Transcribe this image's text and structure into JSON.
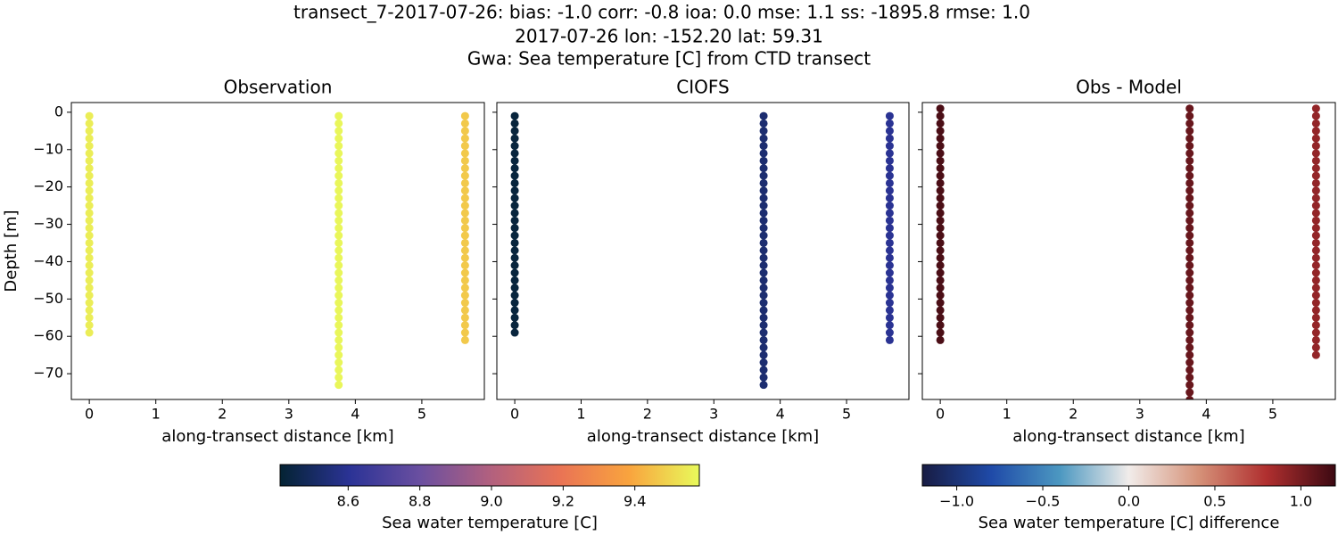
{
  "title": [
    "transect_7-2017-07-26: bias: -1.0  corr: -0.8  ioa: 0.0  mse: 1.1  ss: -1895.8  rmse: 1.0",
    "2017-07-26 lon: -152.20 lat: 59.31",
    "Gwa: Sea temperature [C] from CTD transect"
  ],
  "chart_data": [
    {
      "type": "scatter",
      "title": "Observation",
      "xlabel": "along-transect distance [km]",
      "ylabel": "Depth [m]",
      "colorbar": 0,
      "ytick_labels": true,
      "xlim": [
        -0.27,
        5.94
      ],
      "ylim": [
        -76.9,
        2.6
      ],
      "xticks": [
        0,
        1,
        2,
        3,
        4,
        5
      ],
      "yticks": [
        0,
        {
          "value": -10,
          "label": "−10"
        },
        {
          "value": -20,
          "label": "−20"
        },
        {
          "value": -30,
          "label": "−30"
        },
        {
          "value": -40,
          "label": "−40"
        },
        {
          "value": -50,
          "label": "−50"
        },
        {
          "value": -60,
          "label": "−60"
        },
        {
          "value": -70,
          "label": "−70"
        }
      ],
      "series": [
        {
          "x": 0,
          "value": 9.55,
          "depths": [
            -1,
            -3,
            -5,
            -7,
            -9,
            -11,
            -13,
            -15,
            -17,
            -19,
            -21,
            -23,
            -25,
            -27,
            -29,
            -31,
            -33,
            -35,
            -37,
            -39,
            -41,
            -43,
            -45,
            -47,
            -49,
            -51,
            -53,
            -55,
            -57,
            -59
          ]
        },
        {
          "x": 3.75,
          "value": 9.57,
          "depths": [
            -1,
            -3,
            -5,
            -7,
            -9,
            -11,
            -13,
            -15,
            -17,
            -19,
            -21,
            -23,
            -25,
            -27,
            -29,
            -31,
            -33,
            -35,
            -37,
            -39,
            -41,
            -43,
            -45,
            -47,
            -49,
            -51,
            -53,
            -55,
            -57,
            -59,
            -61,
            -63,
            -65,
            -67,
            -69,
            -71,
            -73
          ]
        },
        {
          "x": 5.65,
          "value": 9.47,
          "depths": [
            -1,
            -3,
            -5,
            -7,
            -9,
            -11,
            -13,
            -15,
            -17,
            -19,
            -21,
            -23,
            -25,
            -27,
            -29,
            -31,
            -33,
            -35,
            -37,
            -39,
            -41,
            -43,
            -45,
            -47,
            -49,
            -51,
            -53,
            -55,
            -57,
            -59,
            -61
          ]
        }
      ]
    },
    {
      "type": "scatter",
      "title": "CIOFS",
      "xlabel": "along-transect distance [km]",
      "colorbar": 0,
      "ytick_labels": false,
      "xlim": [
        -0.27,
        5.94
      ],
      "ylim": [
        -76.9,
        2.6
      ],
      "xticks": [
        0,
        1,
        2,
        3,
        4,
        5
      ],
      "yticks": [
        0,
        -10,
        -20,
        -30,
        -40,
        -50,
        -60,
        -70
      ],
      "series": [
        {
          "x": 0,
          "value": 8.43,
          "depths": [
            -1,
            -3,
            -5,
            -7,
            -9,
            -11,
            -13,
            -15,
            -17,
            -19,
            -21,
            -23,
            -25,
            -27,
            -29,
            -31,
            -33,
            -35,
            -37,
            -39,
            -41,
            -43,
            -45,
            -47,
            -49,
            -51,
            -53,
            -55,
            -57,
            -59
          ]
        },
        {
          "x": 3.75,
          "value": 8.53,
          "depths": [
            -1,
            -3,
            -5,
            -7,
            -9,
            -11,
            -13,
            -15,
            -17,
            -19,
            -21,
            -23,
            -25,
            -27,
            -29,
            -31,
            -33,
            -35,
            -37,
            -39,
            -41,
            -43,
            -45,
            -47,
            -49,
            -51,
            -53,
            -55,
            -57,
            -59,
            -61,
            -63,
            -65,
            -67,
            -69,
            -71,
            -73
          ]
        },
        {
          "x": 5.65,
          "value": 8.6,
          "depths": [
            -1,
            -3,
            -5,
            -7,
            -9,
            -11,
            -13,
            -15,
            -17,
            -19,
            -21,
            -23,
            -25,
            -27,
            -29,
            -31,
            -33,
            -35,
            -37,
            -39,
            -41,
            -43,
            -45,
            -47,
            -49,
            -51,
            -53,
            -55,
            -57,
            -59,
            -61
          ]
        }
      ]
    },
    {
      "type": "scatter",
      "title": "Obs - Model",
      "xlabel": "along-transect distance [km]",
      "colorbar": 1,
      "ytick_labels": false,
      "xlim": [
        -0.27,
        5.94
      ],
      "ylim": [
        -76.9,
        2.6
      ],
      "xticks": [
        0,
        1,
        2,
        3,
        4,
        5
      ],
      "yticks": [
        0,
        -10,
        -20,
        -30,
        -40,
        -50,
        -60,
        -70
      ],
      "series": [
        {
          "x": 0,
          "value": 1.15,
          "depths": [
            1,
            -1,
            -3,
            -5,
            -7,
            -9,
            -11,
            -13,
            -15,
            -17,
            -19,
            -21,
            -23,
            -25,
            -27,
            -29,
            -31,
            -33,
            -35,
            -37,
            -39,
            -41,
            -43,
            -45,
            -47,
            -49,
            -51,
            -53,
            -55,
            -57,
            -59,
            -61
          ]
        },
        {
          "x": 3.75,
          "value": 1.05,
          "depths": [
            1,
            -1,
            -3,
            -5,
            -7,
            -9,
            -11,
            -13,
            -15,
            -17,
            -19,
            -21,
            -23,
            -25,
            -27,
            -29,
            -31,
            -33,
            -35,
            -37,
            -39,
            -41,
            -43,
            -45,
            -47,
            -49,
            -51,
            -53,
            -55,
            -57,
            -59,
            -61,
            -63,
            -65,
            -67,
            -69,
            -71,
            -73,
            -75,
            -77
          ]
        },
        {
          "x": 5.65,
          "value": 0.9,
          "depths": [
            1,
            -1,
            -3,
            -5,
            -7,
            -9,
            -11,
            -13,
            -15,
            -17,
            -19,
            -21,
            -23,
            -25,
            -27,
            -29,
            -31,
            -33,
            -35,
            -37,
            -39,
            -41,
            -43,
            -45,
            -47,
            -49,
            -51,
            -53,
            -55,
            -57,
            -59,
            -61,
            -63,
            -65
          ]
        }
      ]
    }
  ],
  "colorbars": [
    {
      "label": "Sea water temperature [C]",
      "lim": [
        8.41,
        9.58
      ],
      "ticks": [
        8.6,
        8.8,
        {
          "value": 9,
          "label": "9.0"
        },
        9.2,
        9.4
      ],
      "cmap": [
        "#042333",
        "#2b3396",
        "#6a4fa0",
        "#b1607f",
        "#e97355",
        "#f9a43e",
        "#e8fa5b"
      ]
    },
    {
      "label": "Sea water temperature [C] difference",
      "lim": [
        -1.2,
        1.2
      ],
      "ticks": [
        {
          "value": -1,
          "label": "−1.0"
        },
        {
          "value": -0.5,
          "label": "−0.5"
        },
        {
          "value": 0,
          "label": "0.0"
        },
        0.5,
        {
          "value": 1,
          "label": "1.0"
        }
      ],
      "cmap": [
        "#181c43",
        "#1f4aa8",
        "#4c98c1",
        "#f1ecea",
        "#d6937a",
        "#b02f2f",
        "#3c0912"
      ]
    }
  ]
}
